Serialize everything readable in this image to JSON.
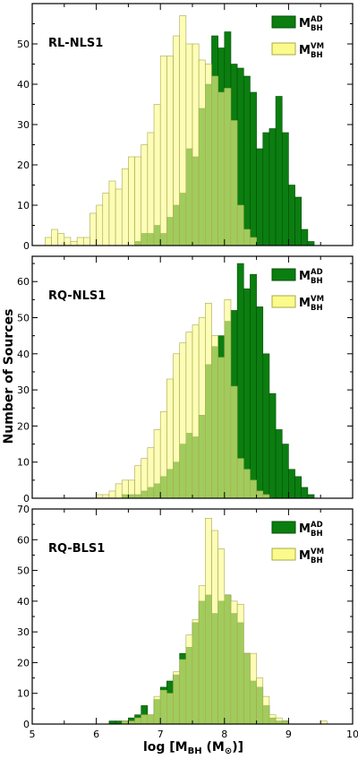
{
  "chart_data": {
    "type": "bar",
    "xlabel": "log [M_BH (M_sun)]",
    "xlabel_parts": {
      "prefix": "log [M",
      "sub": "BH",
      "middle": " (M",
      "sun": "⊙",
      "suffix": ")]"
    },
    "ylabel": "Number of Sources",
    "xlim": [
      5,
      10
    ],
    "xticks": [
      "5",
      "6",
      "7",
      "8",
      "9",
      "10"
    ],
    "bin_width": 0.1,
    "colors": {
      "ad": "#0b7e10",
      "vm": "#fbfb8c",
      "ad_edge": "#064d09",
      "vm_edge": "#a8a84a"
    },
    "legend": [
      {
        "key": "ad",
        "main": "M",
        "sub": "BH",
        "sup": "AD"
      },
      {
        "key": "vm",
        "main": "M",
        "sub": "BH",
        "sup": "VM"
      }
    ],
    "panels": [
      {
        "label": "RL-NLS1",
        "ylim": [
          0,
          60
        ],
        "yticks": [
          "0",
          "10",
          "20",
          "30",
          "40",
          "50"
        ],
        "ad": {
          "start": 6.6,
          "values": [
            1,
            3,
            3,
            5,
            3,
            7,
            10,
            13,
            24,
            22,
            34,
            40,
            52,
            49,
            53,
            45,
            44,
            42,
            38,
            24,
            28,
            29,
            37,
            28,
            15,
            12,
            4,
            1
          ]
        },
        "vm": {
          "start": 5.2,
          "values": [
            2,
            4,
            3,
            2,
            1,
            2,
            2,
            8,
            10,
            13,
            16,
            14,
            19,
            22,
            22,
            25,
            28,
            35,
            47,
            47,
            52,
            57,
            50,
            50,
            46,
            45,
            42,
            38,
            39,
            31,
            10,
            4,
            2
          ]
        }
      },
      {
        "label": "RQ-NLS1",
        "ylim": [
          0,
          67
        ],
        "yticks": [
          "0",
          "10",
          "20",
          "30",
          "40",
          "50",
          "60"
        ],
        "ad": {
          "start": 6.4,
          "values": [
            1,
            1,
            1,
            2,
            3,
            4,
            6,
            8,
            10,
            15,
            18,
            17,
            23,
            37,
            42,
            45,
            49,
            52,
            65,
            58,
            62,
            53,
            40,
            29,
            19,
            15,
            8,
            6,
            3,
            1
          ]
        },
        "vm": {
          "start": 6.0,
          "values": [
            1,
            1,
            2,
            4,
            5,
            5,
            9,
            11,
            14,
            19,
            24,
            33,
            40,
            43,
            46,
            48,
            50,
            54,
            45,
            39,
            55,
            31,
            11,
            8,
            5,
            2,
            1
          ]
        }
      },
      {
        "label": "RQ-BLS1",
        "ylim": [
          0,
          70
        ],
        "yticks": [
          "0",
          "10",
          "20",
          "30",
          "40",
          "50",
          "60",
          "70"
        ],
        "ad": {
          "start": 6.2,
          "values": [
            1,
            1,
            1,
            2,
            3,
            6,
            3,
            8,
            12,
            14,
            16,
            23,
            25,
            33,
            40,
            42,
            36,
            40,
            42,
            36,
            33,
            23,
            14,
            12,
            6,
            2,
            1,
            1
          ]
        },
        "vm": {
          "start": 6.4,
          "values": [
            1,
            1,
            2,
            3,
            3,
            9,
            11,
            10,
            17,
            21,
            29,
            34,
            45,
            67,
            63,
            57,
            42,
            40,
            39,
            23,
            23,
            15,
            9,
            3,
            2,
            1,
            0,
            0,
            0,
            0,
            0,
            1
          ]
        }
      }
    ]
  }
}
